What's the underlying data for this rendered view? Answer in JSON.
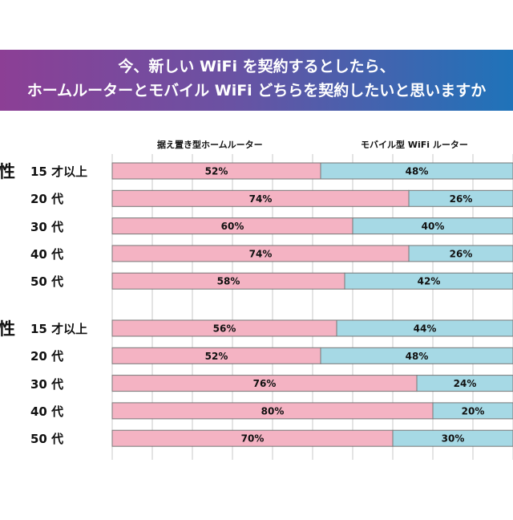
{
  "header": {
    "line1": "今、新しい WiFi を契約するとしたら、",
    "line2": "ホームルーターとモバイル WiFi どちらを契約したいと思いますか"
  },
  "chart_data": {
    "type": "bar",
    "stacked": true,
    "orientation": "horizontal",
    "xlim": [
      0,
      100
    ],
    "grid": true,
    "legend_position": "top",
    "colors": {
      "home": "#f4b3c3",
      "mobile": "#a6d9e5"
    },
    "groups": [
      {
        "label": "性",
        "categories": [
          "15 才以上",
          "20 代",
          "30 代",
          "40 代",
          "50 代"
        ]
      },
      {
        "label": "性",
        "categories": [
          "15 才以上",
          "20 代",
          "30 代",
          "40 代",
          "50 代"
        ]
      }
    ],
    "series": [
      {
        "name": "据え置き型ホームルーター",
        "values": [
          [
            52,
            74,
            60,
            74,
            58
          ],
          [
            56,
            52,
            76,
            80,
            70
          ]
        ]
      },
      {
        "name": "モバイル型 WiFi ルーター",
        "values": [
          [
            48,
            26,
            40,
            26,
            42
          ],
          [
            44,
            48,
            24,
            20,
            30
          ]
        ]
      }
    ]
  }
}
